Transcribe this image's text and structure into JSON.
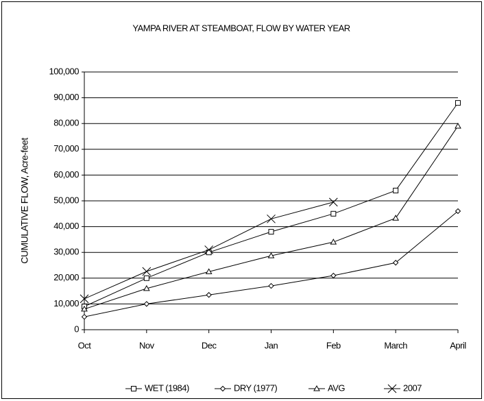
{
  "chart_data": {
    "type": "line",
    "title": "YAMPA RIVER AT STEAMBOAT, FLOW BY WATER YEAR",
    "y_label": "CUMULATIVE FLOW, Acre-feet",
    "categories": [
      "Oct",
      "Nov",
      "Dec",
      "Jan",
      "Feb",
      "March",
      "April"
    ],
    "series": [
      {
        "name": "WET (1984)",
        "color": "#000000",
        "marker": "square",
        "values": [
          9000,
          20000,
          30000,
          38000,
          45000,
          54000,
          88000
        ]
      },
      {
        "name": "DRY (1977)",
        "color": "#000000",
        "marker": "diamond",
        "values": [
          5000,
          10000,
          13500,
          17000,
          21000,
          26000,
          46000
        ]
      },
      {
        "name": "AVG",
        "color": "#000000",
        "marker": "triangle",
        "values": [
          8000,
          16000,
          22500,
          28700,
          34000,
          43300,
          79000
        ]
      },
      {
        "name": "2007",
        "color": "#000000",
        "marker": "x",
        "values": [
          12000,
          22600,
          31000,
          43000,
          49500,
          null,
          null
        ]
      }
    ],
    "ylim": [
      0,
      100000
    ],
    "yticks": [
      0,
      {
        "value": 10000,
        "label": "10,000"
      },
      {
        "value": 20000,
        "label": "20,000"
      },
      {
        "value": 30000,
        "label": "30,000"
      },
      {
        "value": 40000,
        "label": "40,000"
      },
      {
        "value": 50000,
        "label": "50,000"
      },
      {
        "value": 60000,
        "label": "60,000"
      },
      {
        "value": 70000,
        "label": "70,000"
      },
      {
        "value": 80000,
        "label": "80,000"
      },
      {
        "value": 90000,
        "label": "90,000"
      },
      {
        "value": 100000,
        "label": "100,000"
      }
    ],
    "grid": true,
    "legend": "bottom"
  }
}
